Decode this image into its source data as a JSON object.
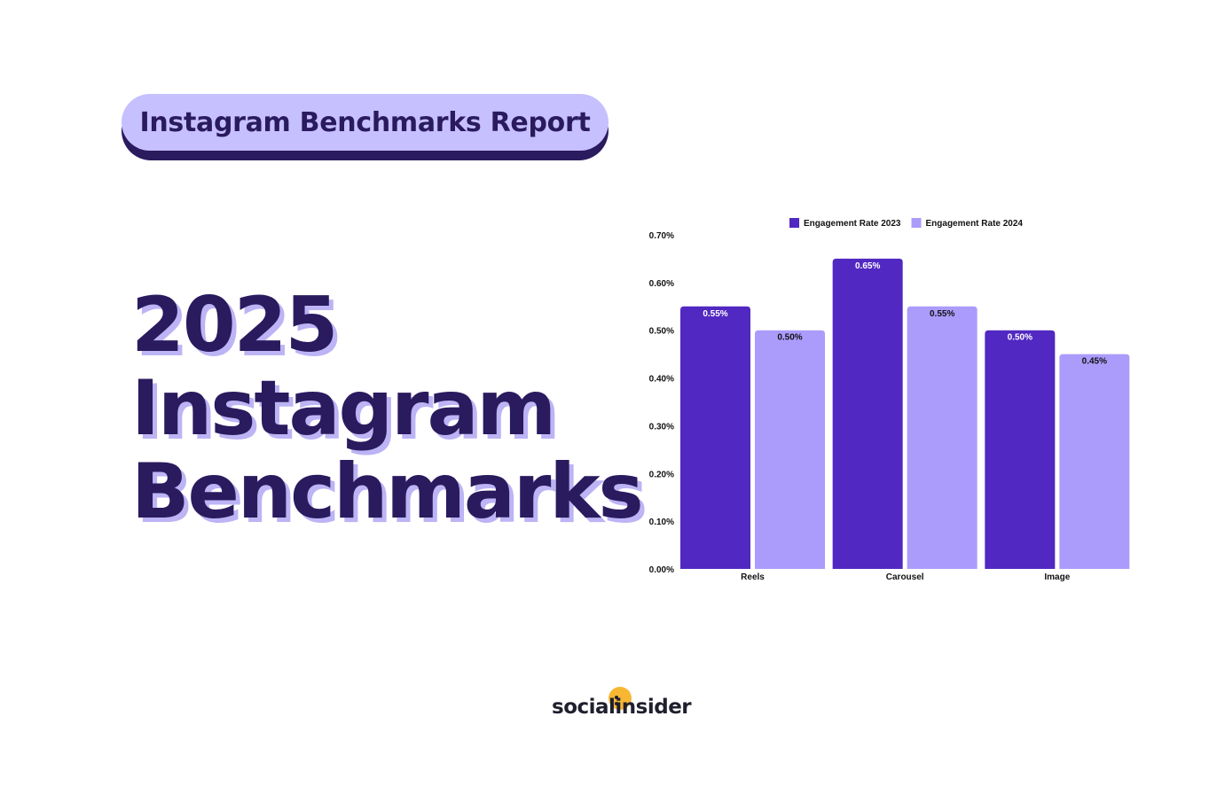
{
  "header": {
    "pill_label": "Instagram Benchmarks Report"
  },
  "headline": {
    "line1": "2025",
    "line2": "Instagram",
    "line3": "Benchmarks"
  },
  "brand": {
    "logo_text": "socialinsider",
    "logo_color": "#f7b733"
  },
  "colors": {
    "series_2023": "#5128c1",
    "series_2024": "#ab9cfc",
    "text_dark": "#2a1a5e"
  },
  "chart_data": {
    "type": "bar",
    "title": "",
    "xlabel": "",
    "ylabel": "",
    "categories": [
      "Reels",
      "Carousel",
      "Image"
    ],
    "series": [
      {
        "name": "Engagement Rate 2023",
        "values": [
          0.55,
          0.65,
          0.5
        ],
        "labels": [
          "0.55%",
          "0.65%",
          "0.50%"
        ]
      },
      {
        "name": "Engagement Rate 2024",
        "values": [
          0.5,
          0.55,
          0.45
        ],
        "labels": [
          "0.50%",
          "0.55%",
          "0.45%"
        ]
      }
    ],
    "ylim": [
      0,
      0.7
    ],
    "yticks": [
      "0.00%",
      "0.10%",
      "0.20%",
      "0.30%",
      "0.40%",
      "0.50%",
      "0.60%",
      "0.70%"
    ],
    "grid": false,
    "legend_position": "top"
  }
}
